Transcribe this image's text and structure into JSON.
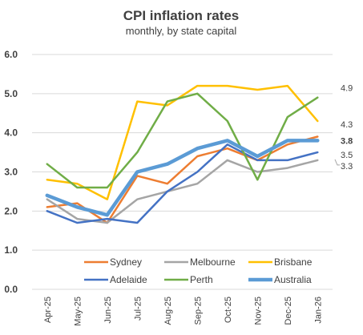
{
  "chart_data": {
    "type": "line",
    "title": "CPI inflation rates",
    "subtitle": "monthly, by state capital",
    "x": [
      "Apr-25",
      "May-25",
      "Jun-25",
      "Jul-25",
      "Aug-25",
      "Sep-25",
      "Oct-25",
      "Nov-25",
      "Dec-25",
      "Jan-26"
    ],
    "ylim": [
      0,
      6
    ],
    "yticks": [
      "0.0",
      "1.0",
      "2.0",
      "3.0",
      "4.0",
      "5.0",
      "6.0"
    ],
    "grid": true,
    "legend_position": "bottom",
    "series": [
      {
        "name": "Sydney",
        "color": "#ED7D31",
        "values": [
          2.1,
          2.2,
          1.7,
          2.9,
          2.7,
          3.4,
          3.6,
          3.3,
          3.7,
          3.9
        ],
        "end_label": "",
        "end_label_bold": false,
        "line_style": "normal"
      },
      {
        "name": "Melbourne",
        "color": "#A5A5A5",
        "values": [
          2.3,
          1.8,
          1.7,
          2.3,
          2.5,
          2.7,
          3.3,
          3.0,
          3.1,
          3.3
        ],
        "end_label": "3.3",
        "end_label_bold": false,
        "line_style": "normal"
      },
      {
        "name": "Brisbane",
        "color": "#FFC000",
        "values": [
          2.8,
          2.7,
          2.3,
          4.8,
          4.7,
          5.2,
          5.2,
          5.1,
          5.2,
          4.3
        ],
        "end_label": "4.3",
        "end_label_bold": false,
        "line_style": "normal"
      },
      {
        "name": "Adelaide",
        "color": "#4472C4",
        "values": [
          2.0,
          1.7,
          1.8,
          1.7,
          2.5,
          3.0,
          3.7,
          3.3,
          3.3,
          3.5
        ],
        "end_label": "3.5",
        "end_label_bold": false,
        "line_style": "normal"
      },
      {
        "name": "Perth",
        "color": "#70AD47",
        "values": [
          3.2,
          2.6,
          2.6,
          3.5,
          4.8,
          5.0,
          4.3,
          2.8,
          4.4,
          4.9
        ],
        "end_label": "4.9",
        "end_label_bold": false,
        "line_style": "normal"
      },
      {
        "name": "Australia",
        "color": "#5B9BD5",
        "values": [
          2.4,
          2.1,
          1.9,
          3.0,
          3.2,
          3.6,
          3.8,
          3.4,
          3.8,
          3.8
        ],
        "end_label": "3.8",
        "end_label_bold": true,
        "line_style": "thick"
      }
    ]
  }
}
